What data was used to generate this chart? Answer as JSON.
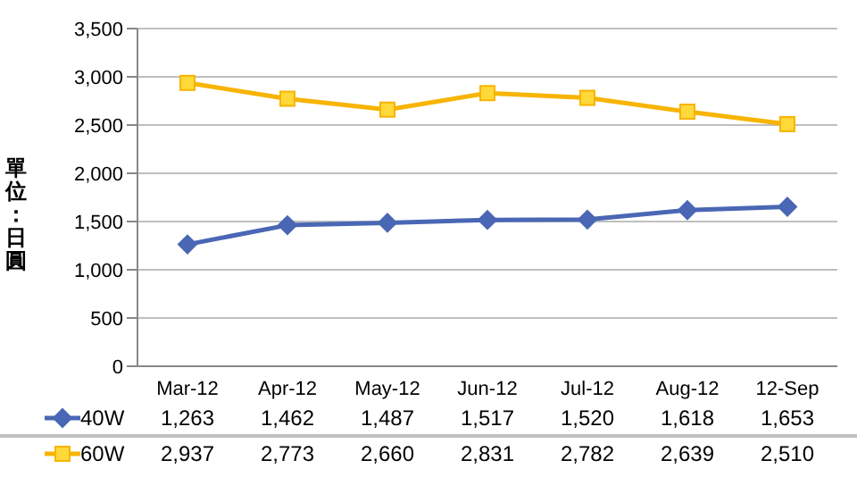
{
  "chart_data": {
    "type": "line",
    "ylabel": "單位：日圓",
    "categories": [
      "Mar-12",
      "Apr-12",
      "May-12",
      "Jun-12",
      "Jul-12",
      "Aug-12",
      "12-Sep"
    ],
    "series": [
      {
        "name": "40W",
        "color": "#4a67b5",
        "marker": "diamond",
        "values": [
          1263,
          1462,
          1487,
          1517,
          1520,
          1618,
          1653
        ],
        "value_labels": [
          "1,263",
          "1,462",
          "1,487",
          "1,517",
          "1,520",
          "1,618",
          "1,653"
        ]
      },
      {
        "name": "60W",
        "color": "#f7b400",
        "marker": "square",
        "values": [
          2937,
          2773,
          2660,
          2831,
          2782,
          2639,
          2510
        ],
        "value_labels": [
          "2,937",
          "2,773",
          "2,660",
          "2,831",
          "2,782",
          "2,639",
          "2,510"
        ]
      }
    ],
    "ylim": [
      0,
      3500
    ],
    "yticks": [
      0,
      500,
      {
        "value": 1000,
        "label": "1,000"
      },
      {
        "value": 1500,
        "label": "1,500"
      },
      {
        "value": 2000,
        "label": "2,000"
      },
      {
        "value": 2500,
        "label": "2,500"
      },
      {
        "value": 3000,
        "label": "3,000"
      },
      {
        "value": 3500,
        "label": "3,500"
      }
    ],
    "grid": "y",
    "legend": "bottom"
  }
}
